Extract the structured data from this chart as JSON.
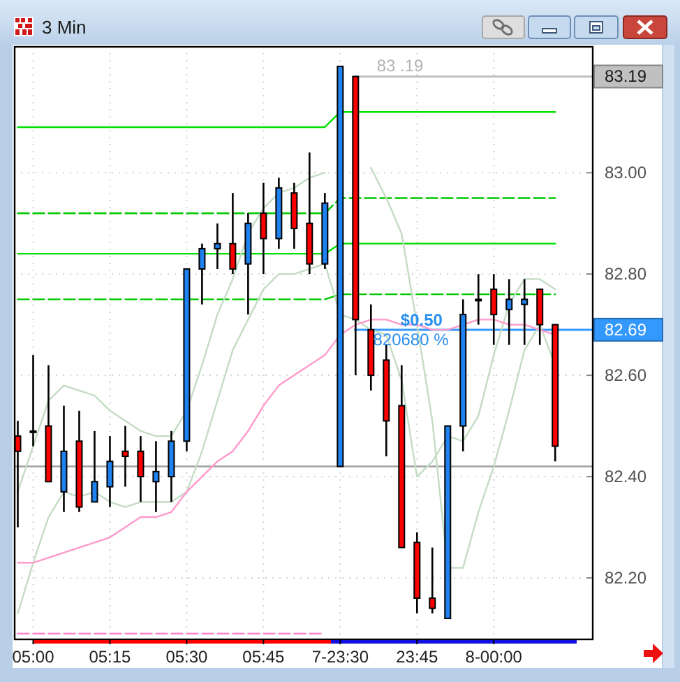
{
  "chart_data": {
    "type": "candlestick",
    "title": "3 Min",
    "categories": [
      null,
      "05:00",
      null,
      null,
      null,
      null,
      "05:15",
      null,
      null,
      null,
      null,
      "05:30",
      null,
      null,
      null,
      null,
      "05:45",
      null,
      null,
      null,
      null,
      "7-23:30",
      null,
      null,
      null,
      null,
      "23:45",
      null,
      null,
      null,
      null,
      "8-00:00",
      null,
      null,
      null,
      null
    ],
    "ohlc": [
      [
        82.48,
        82.51,
        82.3,
        82.45
      ],
      [
        82.49,
        82.64,
        82.46,
        82.49
      ],
      [
        82.5,
        82.62,
        82.39,
        82.39
      ],
      [
        82.37,
        82.54,
        82.33,
        82.45
      ],
      [
        82.47,
        82.53,
        82.33,
        82.34
      ],
      [
        82.35,
        82.49,
        82.35,
        82.39
      ],
      [
        82.38,
        82.48,
        82.34,
        82.43
      ],
      [
        82.45,
        82.5,
        82.38,
        82.44
      ],
      [
        82.45,
        82.48,
        82.35,
        82.4
      ],
      [
        82.39,
        82.47,
        82.33,
        82.41
      ],
      [
        82.4,
        82.49,
        82.35,
        82.47
      ],
      [
        82.47,
        82.81,
        82.45,
        82.81
      ],
      [
        82.81,
        82.86,
        82.74,
        82.85
      ],
      [
        82.85,
        82.9,
        82.81,
        82.86
      ],
      [
        82.86,
        82.96,
        82.8,
        82.81
      ],
      [
        82.82,
        82.92,
        82.72,
        82.9
      ],
      [
        82.92,
        82.98,
        82.8,
        82.87
      ],
      [
        82.87,
        82.99,
        82.85,
        82.97
      ],
      [
        82.96,
        82.98,
        82.85,
        82.89
      ],
      [
        82.9,
        83.04,
        82.8,
        82.82
      ],
      [
        82.82,
        82.96,
        82.81,
        82.94
      ],
      [
        82.42,
        83.21,
        82.42,
        83.21
      ],
      [
        83.19,
        83.19,
        82.6,
        82.71
      ],
      [
        82.69,
        82.74,
        82.57,
        82.6
      ],
      [
        82.63,
        82.66,
        82.44,
        82.51
      ],
      [
        82.54,
        82.62,
        82.26,
        82.26
      ],
      [
        82.27,
        82.29,
        82.13,
        82.16
      ],
      [
        82.16,
        82.26,
        82.13,
        82.14
      ],
      [
        82.12,
        82.5,
        82.12,
        82.5
      ],
      [
        82.5,
        82.75,
        82.45,
        82.72
      ],
      [
        82.75,
        82.8,
        82.7,
        82.75
      ],
      [
        82.77,
        82.8,
        82.66,
        82.72
      ],
      [
        82.73,
        82.79,
        82.66,
        82.75
      ],
      [
        82.74,
        82.79,
        82.66,
        82.75
      ],
      [
        82.77,
        82.77,
        82.66,
        82.7
      ],
      [
        82.7,
        82.7,
        82.43,
        82.46
      ]
    ],
    "colors": [
      "#ff0000",
      "#000000",
      "#ff0000",
      "#1e82f0",
      "#ff0000",
      "#1e82f0",
      "#1e82f0",
      "#ff0000",
      "#ff0000",
      "#1e82f0",
      "#1e82f0",
      "#1e82f0",
      "#1e82f0",
      "#1e82f0",
      "#ff0000",
      "#1e82f0",
      "#ff0000",
      "#1e82f0",
      "#ff0000",
      "#ff0000",
      "#1e82f0",
      "#1e82f0",
      "#ff0000",
      "#ff0000",
      "#ff0000",
      "#ff0000",
      "#ff0000",
      "#ff0000",
      "#1e82f0",
      "#1e82f0",
      "#000000",
      "#ff0000",
      "#1e82f0",
      "#1e82f0",
      "#ff0000",
      "#ff0000"
    ],
    "series": [
      {
        "type": "line",
        "color": "#00e000",
        "line_style": "solid",
        "values": [
          83.09,
          83.09,
          83.09,
          83.09,
          83.09,
          83.09,
          83.09,
          83.09,
          83.09,
          83.09,
          83.09,
          83.09,
          83.09,
          83.09,
          83.09,
          83.09,
          83.09,
          83.09,
          83.09,
          83.09,
          83.09,
          83.12,
          83.12,
          83.12,
          83.12,
          83.12,
          83.12,
          83.12,
          83.12,
          83.12,
          83.12,
          83.12,
          83.12,
          83.12,
          83.12,
          83.12
        ]
      },
      {
        "type": "line",
        "color": "#00c800",
        "line_style": "dashed",
        "values": [
          82.92,
          82.92,
          82.92,
          82.92,
          82.92,
          82.92,
          82.92,
          82.92,
          82.92,
          82.92,
          82.92,
          82.92,
          82.92,
          82.92,
          82.92,
          82.92,
          82.92,
          82.92,
          82.92,
          82.92,
          82.92,
          82.95,
          82.95,
          82.95,
          82.95,
          82.95,
          82.95,
          82.95,
          82.95,
          82.95,
          82.95,
          82.95,
          82.95,
          82.95,
          82.95,
          82.95
        ]
      },
      {
        "type": "line",
        "color": "#00dd00",
        "line_style": "solid",
        "values": [
          82.84,
          82.84,
          82.84,
          82.84,
          82.84,
          82.84,
          82.84,
          82.84,
          82.84,
          82.84,
          82.84,
          82.84,
          82.84,
          82.84,
          82.84,
          82.84,
          82.84,
          82.84,
          82.84,
          82.84,
          82.84,
          82.86,
          82.86,
          82.86,
          82.86,
          82.86,
          82.86,
          82.86,
          82.86,
          82.86,
          82.86,
          82.86,
          82.86,
          82.86,
          82.86,
          82.86
        ]
      },
      {
        "type": "line",
        "color": "#00c800",
        "line_style": "dashed",
        "values": [
          82.75,
          82.75,
          82.75,
          82.75,
          82.75,
          82.75,
          82.75,
          82.75,
          82.75,
          82.75,
          82.75,
          82.75,
          82.75,
          82.75,
          82.75,
          82.75,
          82.75,
          82.75,
          82.75,
          82.75,
          82.75,
          82.76,
          82.76,
          82.76,
          82.76,
          82.76,
          82.76,
          82.76,
          82.76,
          82.76,
          82.76,
          82.76,
          82.76,
          82.76,
          82.76,
          82.76
        ]
      },
      {
        "type": "line",
        "color": "#ff88cc",
        "line_style": "dashed",
        "values": [
          82.09,
          82.09,
          82.09,
          82.09,
          82.09,
          82.09,
          82.09,
          82.09,
          82.09,
          82.09,
          82.09,
          82.09,
          82.09,
          82.09,
          82.09,
          82.09,
          82.09,
          82.09,
          82.09,
          82.09,
          82.09,
          null,
          null,
          null,
          null,
          null,
          null,
          null,
          null,
          null,
          null,
          null,
          null,
          null,
          null,
          null
        ]
      },
      {
        "type": "line",
        "color": "#c4dcc4",
        "line_style": "solid",
        "values": [
          82.37,
          82.46,
          82.55,
          82.58,
          82.57,
          82.56,
          82.53,
          82.51,
          82.49,
          82.48,
          82.48,
          82.53,
          82.62,
          82.72,
          82.79,
          82.88,
          82.93,
          82.96,
          82.97,
          82.99,
          83.0,
          null,
          null,
          83.01,
          82.95,
          82.88,
          82.7,
          82.51,
          82.22,
          82.22,
          82.33,
          82.42,
          82.53,
          82.65,
          82.7,
          82.62
        ]
      },
      {
        "type": "line",
        "color": "#c4dcc4",
        "line_style": "solid",
        "values": [
          82.13,
          82.23,
          82.32,
          82.37,
          82.36,
          82.37,
          82.35,
          82.34,
          82.35,
          82.35,
          82.35,
          82.37,
          82.45,
          82.55,
          82.65,
          82.71,
          82.77,
          82.8,
          82.8,
          82.81,
          82.82,
          82.72,
          82.71,
          82.69,
          82.68,
          82.59,
          82.4,
          82.43,
          82.48,
          82.47,
          82.52,
          82.64,
          82.74,
          82.79,
          82.79,
          82.77
        ]
      },
      {
        "type": "line",
        "color": "#ff99cc",
        "line_style": "solid",
        "values": [
          82.23,
          82.23,
          82.24,
          82.25,
          82.26,
          82.27,
          82.28,
          82.3,
          82.32,
          82.32,
          82.33,
          82.37,
          82.4,
          82.43,
          82.45,
          82.49,
          82.54,
          82.58,
          82.6,
          82.62,
          82.64,
          82.68,
          82.7,
          82.71,
          82.71,
          82.7,
          82.7,
          82.69,
          82.69,
          82.7,
          82.71,
          82.71,
          82.7,
          82.7,
          82.69,
          82.68
        ]
      }
    ],
    "ylim": [
      82.08,
      83.25
    ],
    "yticks": [
      {
        "value": 82.2,
        "label": "82.20"
      },
      {
        "value": 82.4,
        "label": "82.40"
      },
      {
        "value": 82.6,
        "label": "82.60"
      },
      {
        "value": 82.8,
        "label": "82.80"
      },
      {
        "value": 83,
        "label": "83.00"
      }
    ],
    "ref_lines": [
      {
        "axis": "y",
        "value": 82.42,
        "color": "#a0a0a0"
      },
      {
        "axis": "y",
        "value": 83.19,
        "label": "83.19",
        "color": "#c0c0c0"
      },
      {
        "axis": "y",
        "value": 82.69,
        "label": "82.69",
        "color": "#3399ff"
      }
    ],
    "annotations": [
      {
        "text": "83 .19",
        "y": 83.19
      },
      {
        "text": "$0.50",
        "y": 82.69
      },
      "820680 %"
    ],
    "grid": true
  }
}
